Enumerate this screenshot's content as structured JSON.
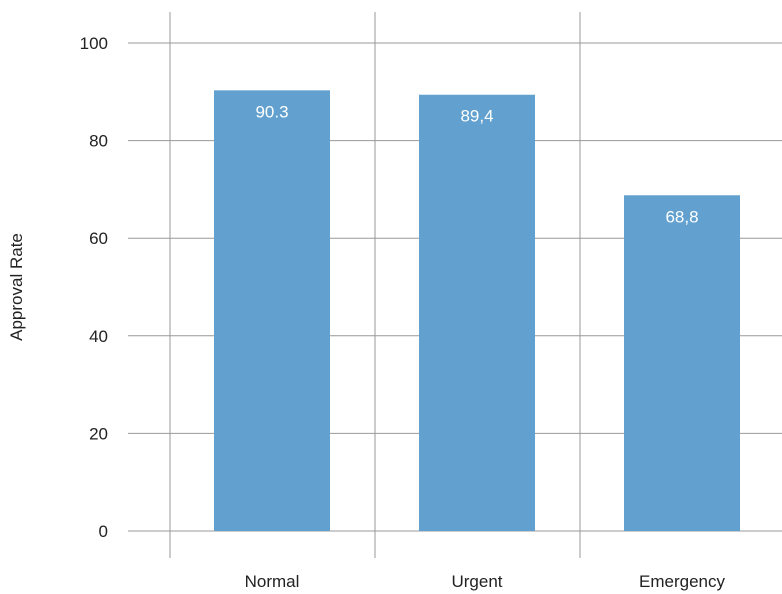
{
  "chart_data": {
    "type": "bar",
    "title": "",
    "xlabel": "",
    "ylabel": "Approval Rate",
    "categories": [
      "Normal",
      "Urgent",
      "Emergency"
    ],
    "values": [
      90.3,
      89.4,
      68.8
    ],
    "data_labels": [
      "90.3",
      "89,4",
      "68,8"
    ],
    "ylim": [
      0,
      100
    ],
    "yticks": [
      "0",
      "20",
      "40",
      "60",
      "80",
      "100"
    ],
    "grid": true,
    "bar_color": "#62a1cf",
    "grid_color": "#999999"
  }
}
